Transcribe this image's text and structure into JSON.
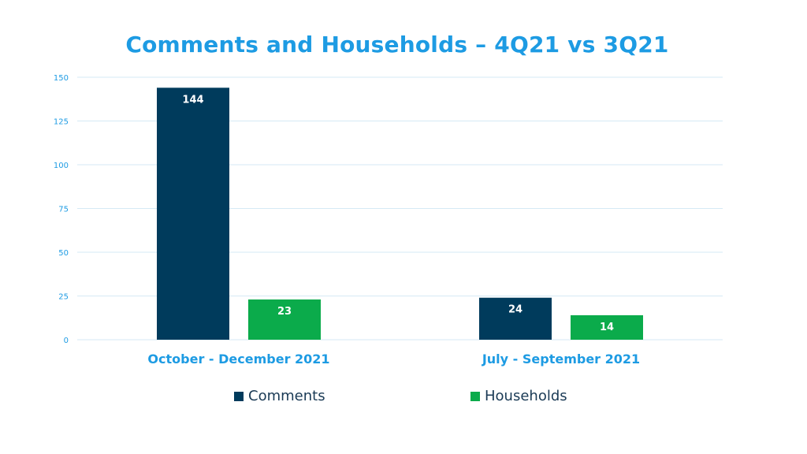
{
  "chart_data": {
    "type": "bar",
    "title": "Comments and Households – 4Q21 vs 3Q21",
    "categories": [
      "October - December 2021",
      "July - September 2021"
    ],
    "series": [
      {
        "name": "Comments",
        "values": [
          144,
          24
        ],
        "color": "#003b5c"
      },
      {
        "name": "Households",
        "values": [
          23,
          14
        ],
        "color": "#0bab4b"
      }
    ],
    "yticks": [
      "0",
      "25",
      "50",
      "75",
      "100",
      "125",
      "150"
    ],
    "ylim": [
      0,
      150
    ],
    "grid": true,
    "legend_position": "bottom",
    "colors": {
      "title": "#1d9be3",
      "axis_labels": "#1d9be3",
      "gridline": "#d6e9f5",
      "data_label": "#ffffff"
    }
  }
}
